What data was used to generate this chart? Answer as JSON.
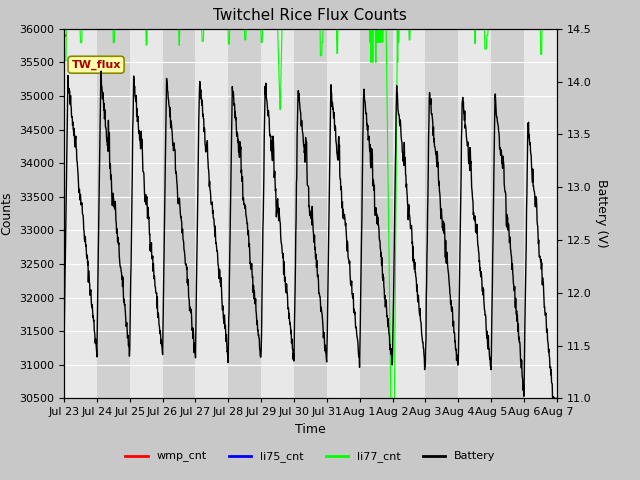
{
  "title": "Twitchel Rice Flux Counts",
  "xlabel": "Time",
  "ylabel_left": "Counts",
  "ylabel_right": "Battery (V)",
  "ylim_left": [
    30500,
    36000
  ],
  "ylim_right": [
    11.0,
    14.5
  ],
  "yticks_left": [
    30500,
    31000,
    31500,
    32000,
    32500,
    33000,
    33500,
    34000,
    34500,
    35000,
    35500,
    36000
  ],
  "yticks_right": [
    11.0,
    11.5,
    12.0,
    12.5,
    13.0,
    13.5,
    14.0,
    14.5
  ],
  "fig_bg_color": "#c8c8c8",
  "plot_bg_color": "#e0e0e0",
  "band_light": "#e8e8e8",
  "band_dark": "#d0d0d0",
  "annotation_label": "TW_flux",
  "annotation_color": "#aa0000",
  "annotation_bg": "#ffffaa",
  "annotation_border": "#888800",
  "xtick_labels": [
    "Jul 23",
    "Jul 24",
    "Jul 25",
    "Jul 26",
    "Jul 27",
    "Jul 28",
    "Jul 29",
    "Jul 30",
    "Jul 31",
    "Aug 1",
    "Aug 2",
    "Aug 3",
    "Aug 4",
    "Aug 5",
    "Aug 6",
    "Aug 7"
  ],
  "color_wmp": "#ff0000",
  "color_li75": "#0000ff",
  "color_li77": "#00ff00",
  "color_battery": "#000000"
}
